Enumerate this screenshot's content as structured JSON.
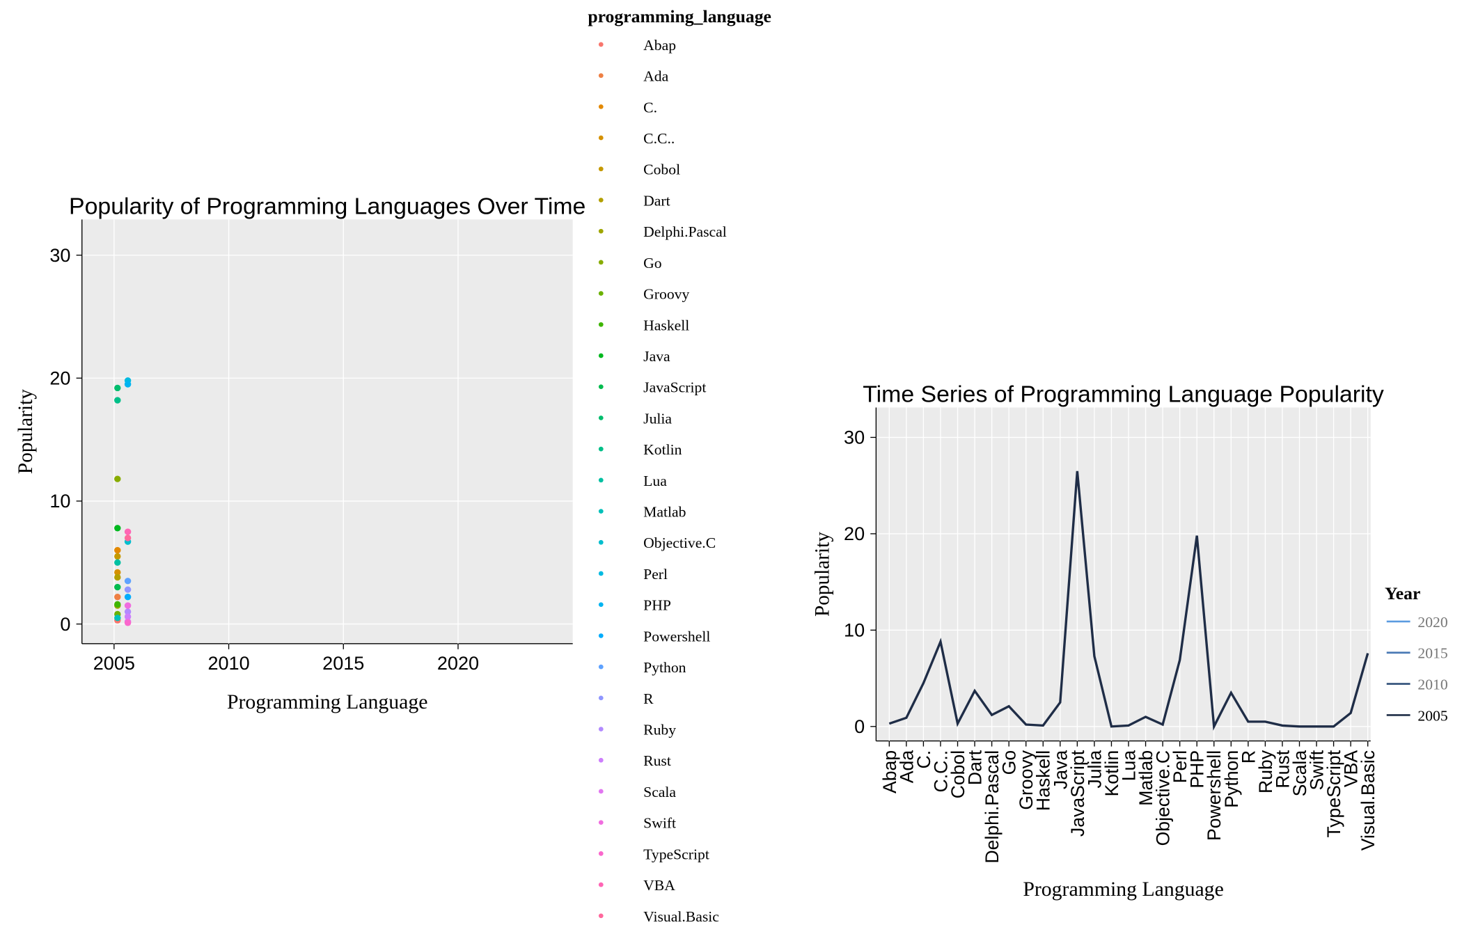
{
  "chart_data": [
    {
      "type": "scatter",
      "title": "Popularity of Programming Languages Over Time",
      "x_label": "Programming Language",
      "y_label": "Popularity",
      "legend_title": "programming_language",
      "xlim": [
        2003.6,
        2025
      ],
      "xticks": [
        2005,
        2010,
        2015,
        2020
      ],
      "ylim": [
        -1.6,
        32.9
      ],
      "yticks": [
        0,
        10,
        20,
        30
      ],
      "grid": true,
      "series": [
        {
          "name": "Abap",
          "color": "#F8766D",
          "x": [
            2005.15
          ],
          "values": [
            0.3
          ]
        },
        {
          "name": "Ada",
          "color": "#EE8044",
          "x": [
            2005.15
          ],
          "values": [
            2.2
          ]
        },
        {
          "name": "C.",
          "color": "#E38900",
          "x": [
            2005.15
          ],
          "values": [
            6.0
          ]
        },
        {
          "name": "C.C..",
          "color": "#D59100",
          "x": [
            2005.15
          ],
          "values": [
            4.2
          ]
        },
        {
          "name": "Cobol",
          "color": "#C59900",
          "x": [
            2005.15
          ],
          "values": [
            5.5
          ]
        },
        {
          "name": "Dart",
          "color": "#B3A000",
          "x": [
            2005.15
          ],
          "values": [
            3.8
          ]
        },
        {
          "name": "Delphi.Pascal",
          "color": "#9FA600",
          "x": [
            2005.15
          ],
          "values": [
            1.5
          ]
        },
        {
          "name": "Go",
          "color": "#88AC00",
          "x": [
            2005.15
          ],
          "values": [
            11.8
          ]
        },
        {
          "name": "Groovy",
          "color": "#6BB100",
          "x": [
            2005.15
          ],
          "values": [
            0.8
          ]
        },
        {
          "name": "Haskell",
          "color": "#3EB500",
          "x": [
            2005.15
          ],
          "values": [
            1.6
          ]
        },
        {
          "name": "Java",
          "color": "#00B81F",
          "x": [
            2005.15
          ],
          "values": [
            7.8
          ]
        },
        {
          "name": "JavaScript",
          "color": "#00BB4E",
          "x": [
            2005.15
          ],
          "values": [
            3.0
          ]
        },
        {
          "name": "Julia",
          "color": "#00BD6D",
          "x": [
            2005.15
          ],
          "values": [
            19.2
          ]
        },
        {
          "name": "Kotlin",
          "color": "#00BF88",
          "x": [
            2005.15
          ],
          "values": [
            18.2
          ]
        },
        {
          "name": "Lua",
          "color": "#00C0A2",
          "x": [
            2005.15
          ],
          "values": [
            5.0
          ]
        },
        {
          "name": "Matlab",
          "color": "#00C0B9",
          "x": [
            2005.15
          ],
          "values": [
            0.5
          ]
        },
        {
          "name": "Objective.C",
          "color": "#00BECE",
          "x": [
            2005.6
          ],
          "values": [
            6.7
          ]
        },
        {
          "name": "Perl",
          "color": "#00BAE1",
          "x": [
            2005.6
          ],
          "values": [
            19.8
          ]
        },
        {
          "name": "PHP",
          "color": "#00B4F1",
          "x": [
            2005.6
          ],
          "values": [
            19.5
          ]
        },
        {
          "name": "Powershell",
          "color": "#00ACFC",
          "x": [
            2005.6
          ],
          "values": [
            2.2
          ]
        },
        {
          "name": "Python",
          "color": "#5EA2FF",
          "x": [
            2005.6
          ],
          "values": [
            3.5
          ]
        },
        {
          "name": "R",
          "color": "#8F96FF",
          "x": [
            2005.6
          ],
          "values": [
            2.8
          ]
        },
        {
          "name": "Ruby",
          "color": "#B28AFF",
          "x": [
            2005.6
          ],
          "values": [
            1.0
          ]
        },
        {
          "name": "Rust",
          "color": "#CD7FFC",
          "x": [
            2005.6
          ],
          "values": [
            0.6
          ]
        },
        {
          "name": "Scala",
          "color": "#E176F0",
          "x": [
            2005.6
          ],
          "values": [
            0.2
          ]
        },
        {
          "name": "Swift",
          "color": "#F06DDF",
          "x": [
            2005.6
          ],
          "values": [
            1.5
          ]
        },
        {
          "name": "TypeScript",
          "color": "#FA67CC",
          "x": [
            2005.6
          ],
          "values": [
            0.1
          ]
        },
        {
          "name": "VBA",
          "color": "#FF65B5",
          "x": [
            2005.6
          ],
          "values": [
            7.5
          ]
        },
        {
          "name": "Visual.Basic",
          "color": "#FF689D",
          "x": [
            2005.6
          ],
          "values": [
            7.0
          ]
        }
      ]
    },
    {
      "type": "line",
      "title": "Time Series of Programming Language Popularity",
      "x_label": "Programming Language",
      "y_label": "Popularity",
      "legend_title": "Year",
      "legend_items": [
        {
          "label": "2020",
          "color": "#5B9BE0"
        },
        {
          "label": "2015",
          "color": "#4A7AB5"
        },
        {
          "label": "2010",
          "color": "#2F4F78"
        },
        {
          "label": "2005",
          "color": "#1F2D47"
        }
      ],
      "categories": [
        "Abap",
        "Ada",
        "C.",
        "C.C..",
        "Cobol",
        "Dart",
        "Delphi.Pascal",
        "Go",
        "Groovy",
        "Haskell",
        "Java",
        "JavaScript",
        "Julia",
        "Kotlin",
        "Lua",
        "Matlab",
        "Objective.C",
        "Perl",
        "PHP",
        "Powershell",
        "Python",
        "R",
        "Ruby",
        "Rust",
        "Scala",
        "Swift",
        "TypeScript",
        "VBA",
        "Visual.Basic"
      ],
      "ylim": [
        -1.5,
        33.1
      ],
      "yticks": [
        0,
        10,
        20,
        30
      ],
      "grid": true,
      "series": [
        {
          "name": "2005",
          "color": "#1F2D47",
          "values": [
            0.3,
            0.9,
            4.5,
            8.8,
            0.3,
            3.7,
            1.2,
            2.1,
            0.2,
            0.1,
            2.5,
            26.5,
            7.3,
            0,
            0.1,
            1.0,
            0.2,
            6.9,
            19.8,
            0,
            3.5,
            0.5,
            0.5,
            0.1,
            0,
            0,
            0,
            1.4,
            7.6
          ]
        }
      ]
    }
  ]
}
